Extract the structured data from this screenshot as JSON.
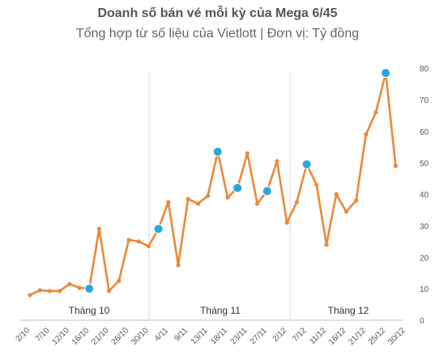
{
  "title": "Doanh số bán vé mỗi kỳ của Mega 6/45",
  "subtitle": "Tổng hợp từ số liệu của Vietlott | Đơn vị: Tỷ đồng",
  "chart_data": {
    "type": "line",
    "title": "Doanh số bán vé mỗi kỳ của Mega 6/45",
    "subtitle": "Tổng hợp từ số liệu của Vietlott | Đơn vị: Tỷ đồng",
    "ylim": [
      0,
      80
    ],
    "yticks": [
      0,
      10,
      20,
      30,
      40,
      50,
      60,
      70,
      80
    ],
    "y_axis_position": "right",
    "grid": "vertical separators between months",
    "line_color": "#E8893A",
    "marker_color": "#2AA7D9",
    "x_tick_labels": [
      "2/10",
      "7/10",
      "12/10",
      "16/10",
      "21/10",
      "26/10",
      "30/10",
      "4/11",
      "9/11",
      "13/11",
      "18/11",
      "23/11",
      "27/11",
      "2/12",
      "7/12",
      "11/12",
      "16/12",
      "21/12",
      "25/12",
      "30/12"
    ],
    "groups": [
      {
        "label": "Tháng 10"
      },
      {
        "label": "Tháng 11"
      },
      {
        "label": "Tháng 12"
      }
    ],
    "series": [
      {
        "values": [
          8,
          9.5,
          9.3,
          9.3,
          11.5,
          10.3,
          10,
          29,
          9.3,
          12.5,
          25.5,
          25,
          23.5,
          29,
          37.5,
          17.5,
          38.5,
          37,
          39.5,
          53.5,
          39,
          42,
          53,
          37,
          41,
          50.5,
          31,
          37.5,
          49.5,
          43,
          24,
          40,
          34.5,
          38,
          59,
          66,
          78.5,
          49
        ],
        "highlighted_indices": [
          6,
          13,
          19,
          21,
          24,
          28,
          36
        ]
      }
    ]
  }
}
